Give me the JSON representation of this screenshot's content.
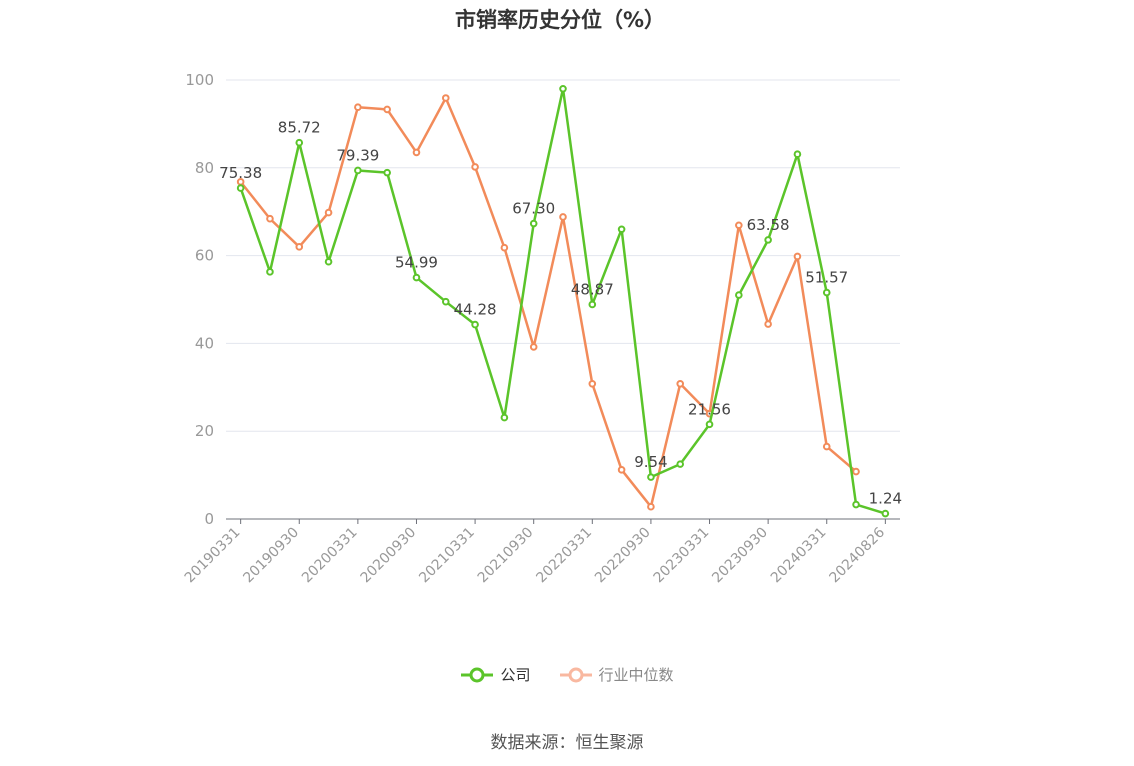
{
  "chart_data": {
    "type": "line",
    "title": "市销率历史分位（%）",
    "xlabel": "",
    "ylabel": "",
    "ylim": [
      0,
      100
    ],
    "yticks": [
      0,
      20,
      40,
      60,
      80,
      100
    ],
    "x": [
      "20190331",
      "20190630",
      "20190930",
      "20191231",
      "20200331",
      "20200630",
      "20200930",
      "20201231",
      "20210331",
      "20210630",
      "20210930",
      "20211231",
      "20220331",
      "20220630",
      "20220930",
      "20221231",
      "20230331",
      "20230630",
      "20230930",
      "20231231",
      "20240331",
      "20240630",
      "20240826"
    ],
    "xtick_labels": [
      "20190331",
      "20190930",
      "20200331",
      "20200930",
      "20210331",
      "20210930",
      "20220331",
      "20220930",
      "20230331",
      "20230930",
      "20240331",
      "20240826"
    ],
    "series": [
      {
        "name": "公司",
        "color": "#5bc42a",
        "values": [
          75.38,
          56.3,
          85.72,
          58.6,
          79.39,
          78.9,
          54.99,
          49.5,
          44.28,
          23.1,
          67.3,
          98.0,
          48.87,
          66.0,
          9.54,
          12.5,
          21.56,
          51.0,
          63.58,
          83.1,
          51.57,
          3.3,
          1.24
        ],
        "labels": [
          "75.38",
          null,
          "85.72",
          null,
          "79.39",
          null,
          "54.99",
          null,
          "44.28",
          null,
          "67.30",
          null,
          "48.87",
          null,
          "9.54",
          null,
          "21.56",
          null,
          "63.58",
          null,
          "51.57",
          null,
          "1.24"
        ]
      },
      {
        "name": "行业中位数",
        "color": "#f28b5a",
        "values": [
          76.8,
          68.4,
          62.0,
          69.8,
          93.8,
          93.3,
          83.5,
          95.9,
          80.2,
          61.8,
          39.2,
          68.8,
          30.8,
          11.2,
          2.8,
          30.8,
          24.0,
          66.9,
          44.4,
          59.8,
          16.5,
          10.8,
          null
        ]
      }
    ],
    "legend": {
      "position": "bottom"
    },
    "grid": true
  },
  "source_text": "数据来源：恒生聚源"
}
